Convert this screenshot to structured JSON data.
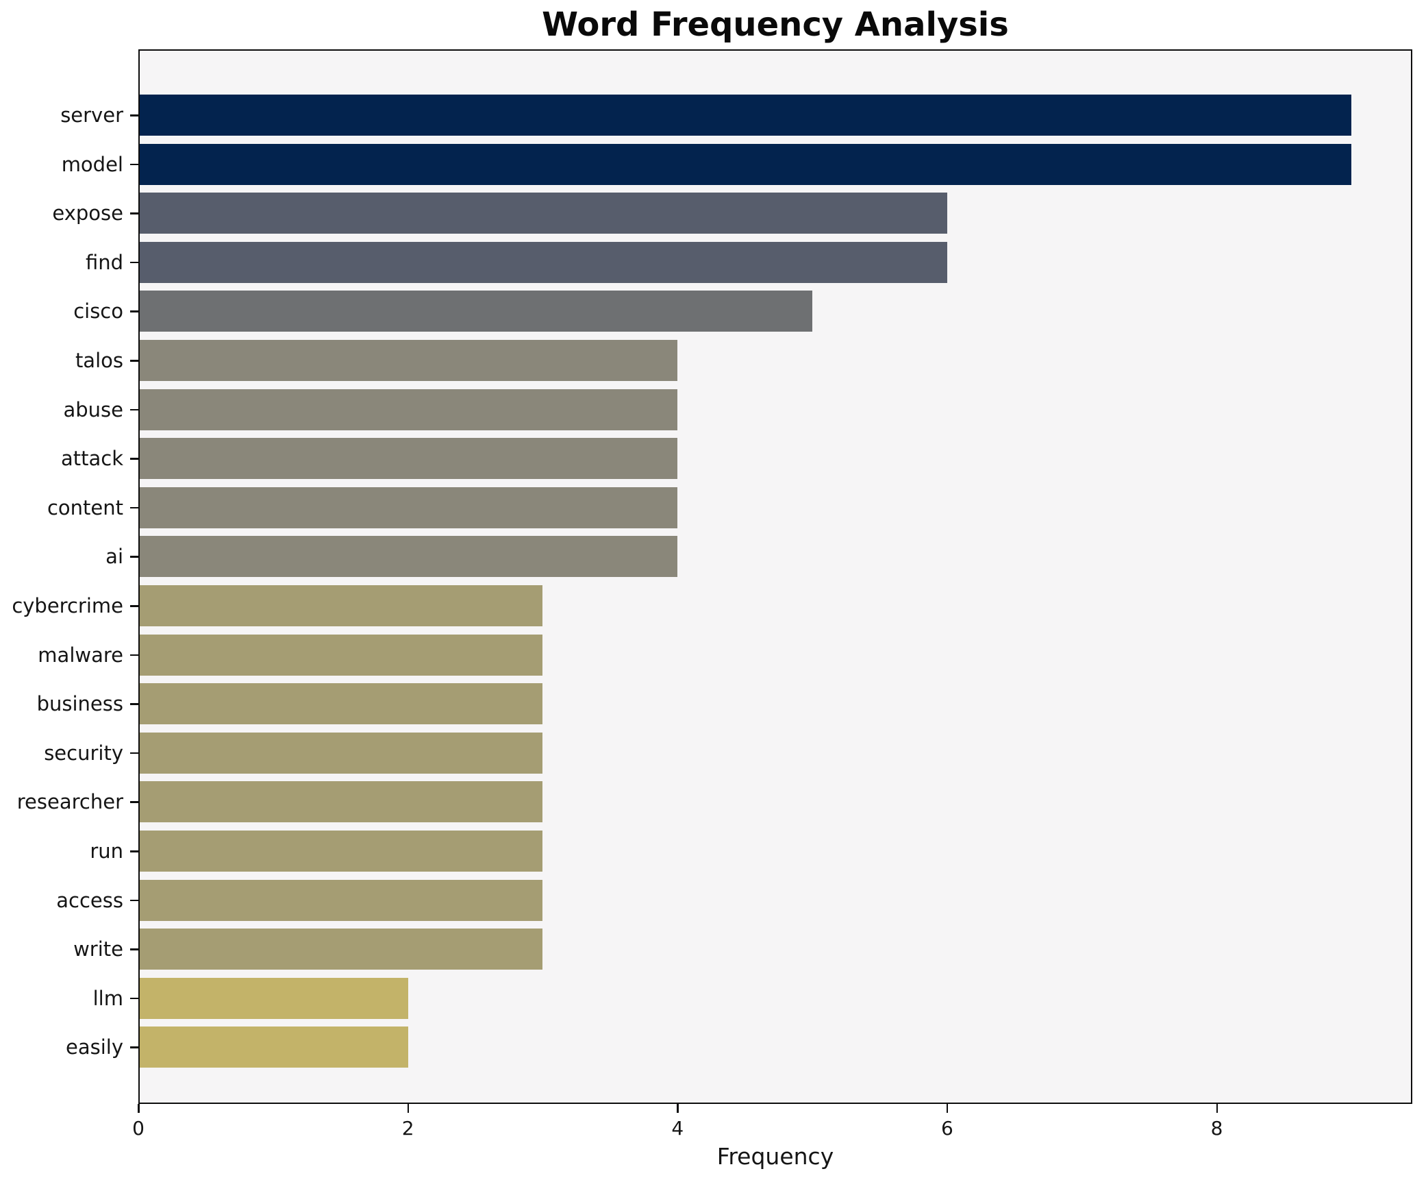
{
  "chart_data": {
    "type": "bar",
    "orientation": "horizontal",
    "title": "Word Frequency Analysis",
    "xlabel": "Frequency",
    "ylabel": "",
    "categories": [
      "server",
      "model",
      "expose",
      "find",
      "cisco",
      "talos",
      "abuse",
      "attack",
      "content",
      "ai",
      "cybercrime",
      "malware",
      "business",
      "security",
      "researcher",
      "run",
      "access",
      "write",
      "llm",
      "easily"
    ],
    "values": [
      9,
      9,
      6,
      6,
      5,
      4,
      4,
      4,
      4,
      4,
      3,
      3,
      3,
      3,
      3,
      3,
      3,
      3,
      2,
      2
    ],
    "bar_colors": [
      "#03234e",
      "#03234e",
      "#575d6c",
      "#575d6c",
      "#6e7072",
      "#8a877a",
      "#8a877a",
      "#8a877a",
      "#8a877a",
      "#8a877a",
      "#a59d73",
      "#a59d73",
      "#a59d73",
      "#a59d73",
      "#a59d73",
      "#a59d73",
      "#a59d73",
      "#a59d73",
      "#c3b369",
      "#c3b369"
    ],
    "xlim": [
      0,
      9.45
    ],
    "xticks": [
      0,
      2,
      4,
      6,
      8
    ],
    "grid": false,
    "legend": null,
    "plot_background": "#f6f5f6",
    "figure_background": "#ffffff",
    "spine_color": "#0d0d0d",
    "text_color": "#151515"
  }
}
